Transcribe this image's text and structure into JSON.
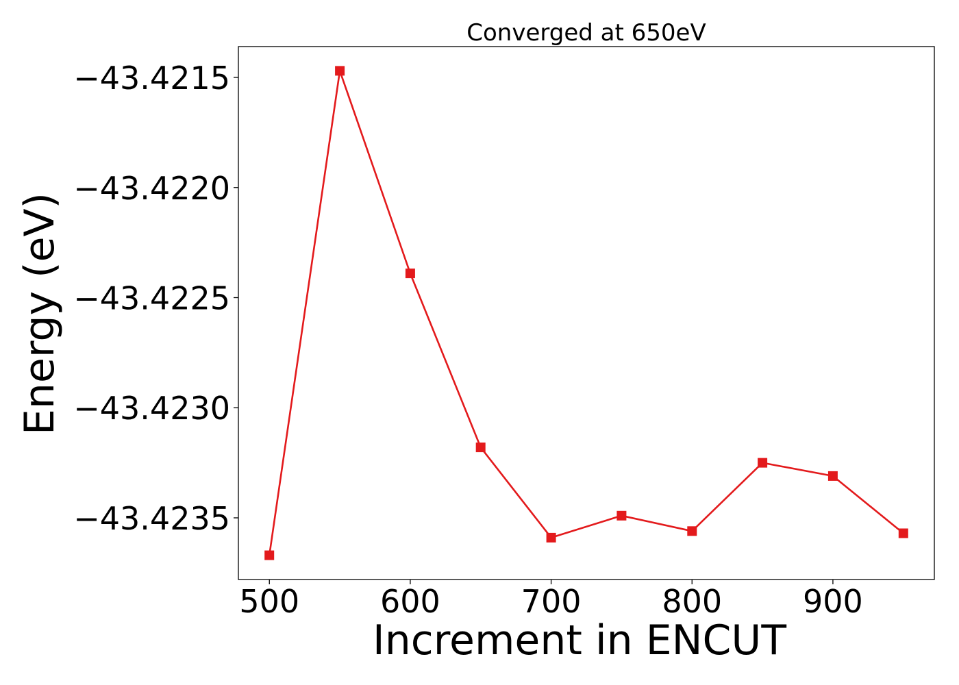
{
  "chart_data": {
    "type": "line",
    "title": "Converged at 650eV",
    "xlabel": "Increment in ENCUT",
    "ylabel": "Energy (eV)",
    "x": [
      500,
      550,
      600,
      650,
      700,
      750,
      800,
      850,
      900,
      950
    ],
    "series": [
      {
        "values": [
          -43.42367,
          -43.42147,
          -43.42239,
          -43.42318,
          -43.42359,
          -43.42349,
          -43.42356,
          -43.42325,
          -43.42331,
          -43.42357
        ],
        "color": "#e31a1c",
        "marker": "square"
      }
    ],
    "xlim": [
      478,
      972
    ],
    "ylim": [
      -43.42378,
      -43.42136
    ],
    "xticks": [
      500,
      600,
      700,
      800,
      900
    ],
    "xtick_labels": [
      "500",
      "600",
      "700",
      "800",
      "900"
    ],
    "yticks": [
      -43.4215,
      -43.422,
      -43.4225,
      -43.423,
      -43.4235
    ],
    "ytick_labels": [
      "−43.4215",
      "−43.4220",
      "−43.4225",
      "−43.4230",
      "−43.4235"
    ],
    "grid": false,
    "legend": "none"
  }
}
